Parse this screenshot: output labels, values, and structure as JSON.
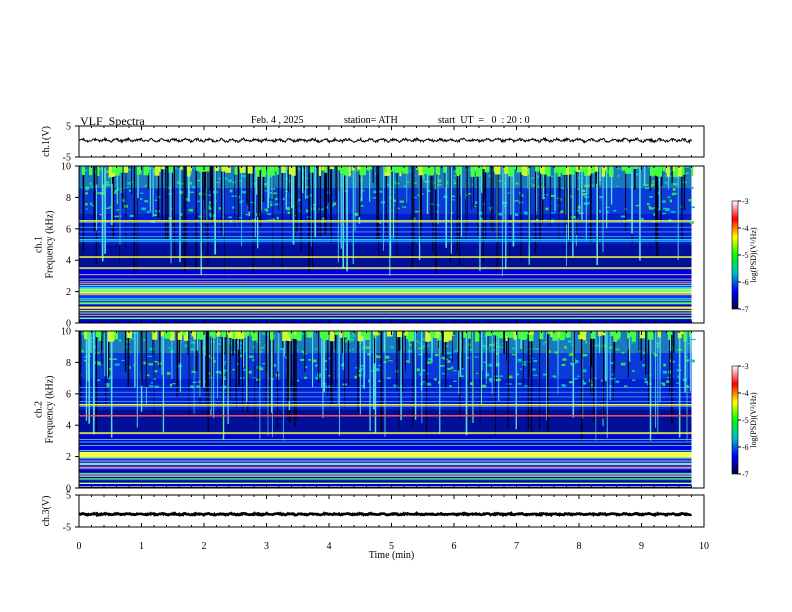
{
  "header": {
    "title": "VLF  Spectra",
    "date": "Feb. 4 , 2025",
    "station": "station= ATH",
    "start": "start  UT  =   0  : 20 : 0"
  },
  "colorbar": {
    "label": "log(PSD)(V²/Hz)",
    "ticks": [
      "-3",
      "-4",
      "-5",
      "-6",
      "-7"
    ],
    "colors": [
      "#ffffff",
      "#ff0000",
      "#ffff00",
      "#00ff00",
      "#00bfbf",
      "#0000ff",
      "#00003a"
    ]
  },
  "chart_data": [
    {
      "id": "ch1-waveform",
      "type": "line",
      "ylabel": "ch.1(V)",
      "ylim": [
        -5,
        5
      ],
      "yticks": [
        "5",
        "-5"
      ],
      "x_range_min": [
        0,
        9.8
      ],
      "mean_level_v": 0.4,
      "amplitude_v": 0.6
    },
    {
      "id": "ch1-spectrogram",
      "type": "heatmap",
      "ylabel": "ch.1\nFrequency (kHz)",
      "ylim": [
        0,
        10
      ],
      "yticks": [
        "0",
        "2",
        "4",
        "6",
        "8",
        "10"
      ],
      "x_range_min": [
        0,
        9.8
      ],
      "line_bands_khz": [
        0.3,
        0.8,
        1.0,
        2.0,
        2.2,
        3.5,
        4.2,
        5.3,
        6.5
      ],
      "colorbar_range": [
        -7,
        -3
      ]
    },
    {
      "id": "ch2-spectrogram",
      "type": "heatmap",
      "ylabel": "ch.2\nFrequency (kHz)",
      "ylim": [
        0,
        10
      ],
      "yticks": [
        "0",
        "2",
        "4",
        "6",
        "8",
        "10"
      ],
      "x_range_min": [
        0,
        9.8
      ],
      "line_bands_khz": [
        0.3,
        1.3,
        2.0,
        2.2,
        3.5,
        4.6,
        5.3
      ],
      "colorbar_range": [
        -7,
        -3
      ]
    },
    {
      "id": "ch3-waveform",
      "type": "line",
      "ylabel": "ch.3(V)",
      "ylim": [
        -5,
        5
      ],
      "yticks": [
        "5",
        "-5"
      ],
      "x_range_min": [
        0,
        9.8
      ],
      "mean_level_v": -1.0,
      "amplitude_v": 0.25
    }
  ],
  "xaxis": {
    "label": "Time  (min)",
    "ticks": [
      "0",
      "1",
      "2",
      "3",
      "4",
      "5",
      "6",
      "7",
      "8",
      "9",
      "10"
    ],
    "xlim": [
      0,
      10
    ]
  }
}
